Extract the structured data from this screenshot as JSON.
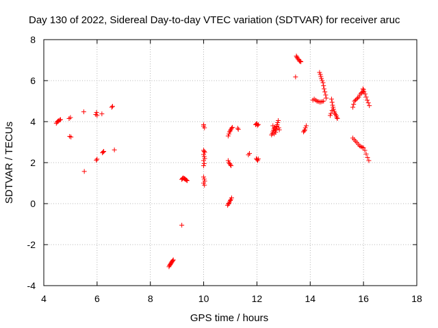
{
  "chart_data": {
    "type": "scatter",
    "title": "Day 130 of 2022, Sidereal Day-to-day VTEC variation (SDTVAR) for receiver aruc",
    "xlabel": "GPS time / hours",
    "ylabel": "SDTVAR / TECUs",
    "xlim": [
      4,
      18
    ],
    "ylim": [
      -4,
      8
    ],
    "xticks": [
      4,
      6,
      8,
      10,
      12,
      14,
      16,
      18
    ],
    "yticks": [
      -4,
      -2,
      0,
      2,
      4,
      6,
      8
    ],
    "grid": true,
    "marker": "+",
    "color": "#ff0000",
    "series": [
      {
        "name": "SDTVAR",
        "points": [
          [
            4.47,
            3.92
          ],
          [
            4.5,
            3.98
          ],
          [
            4.53,
            4.02
          ],
          [
            4.56,
            4.05
          ],
          [
            4.6,
            4.08
          ],
          [
            4.63,
            4.1
          ],
          [
            4.95,
            4.15
          ],
          [
            5.0,
            4.2
          ],
          [
            4.97,
            3.28
          ],
          [
            5.02,
            3.25
          ],
          [
            5.5,
            4.48
          ],
          [
            5.52,
            1.57
          ],
          [
            5.95,
            4.35
          ],
          [
            5.98,
            4.45
          ],
          [
            6.0,
            4.3
          ],
          [
            5.97,
            2.12
          ],
          [
            6.0,
            2.17
          ],
          [
            6.18,
            4.38
          ],
          [
            6.2,
            2.48
          ],
          [
            6.23,
            2.52
          ],
          [
            6.25,
            2.55
          ],
          [
            6.55,
            4.7
          ],
          [
            6.58,
            4.75
          ],
          [
            6.65,
            2.62
          ],
          [
            8.7,
            -3.08
          ],
          [
            8.72,
            -3.02
          ],
          [
            8.74,
            -2.98
          ],
          [
            8.76,
            -2.94
          ],
          [
            8.78,
            -2.9
          ],
          [
            8.8,
            -2.86
          ],
          [
            8.82,
            -2.82
          ],
          [
            8.84,
            -2.78
          ],
          [
            8.86,
            -2.74
          ],
          [
            9.18,
            -1.05
          ],
          [
            9.18,
            1.18
          ],
          [
            9.2,
            1.22
          ],
          [
            9.22,
            1.25
          ],
          [
            9.25,
            1.24
          ],
          [
            9.28,
            1.22
          ],
          [
            9.3,
            1.2
          ],
          [
            9.32,
            1.18
          ],
          [
            9.35,
            1.15
          ],
          [
            9.38,
            1.12
          ],
          [
            10.0,
            3.78
          ],
          [
            10.03,
            3.7
          ],
          [
            10.0,
            3.85
          ],
          [
            10.0,
            2.6
          ],
          [
            10.02,
            2.55
          ],
          [
            10.04,
            2.5
          ],
          [
            10.0,
            2.4
          ],
          [
            10.02,
            2.3
          ],
          [
            10.04,
            2.2
          ],
          [
            10.0,
            2.1
          ],
          [
            10.02,
            1.95
          ],
          [
            10.0,
            1.85
          ],
          [
            10.0,
            1.3
          ],
          [
            10.02,
            1.2
          ],
          [
            10.04,
            1.1
          ],
          [
            10.0,
            1.0
          ],
          [
            10.03,
            0.9
          ],
          [
            10.92,
            3.3
          ],
          [
            10.95,
            3.4
          ],
          [
            10.97,
            3.5
          ],
          [
            11.0,
            3.55
          ],
          [
            11.02,
            3.62
          ],
          [
            11.05,
            3.68
          ],
          [
            11.08,
            3.72
          ],
          [
            10.92,
            2.1
          ],
          [
            10.95,
            2.0
          ],
          [
            10.98,
            1.95
          ],
          [
            11.0,
            1.9
          ],
          [
            11.03,
            1.85
          ],
          [
            10.9,
            -0.08
          ],
          [
            10.93,
            -0.02
          ],
          [
            10.95,
            0.02
          ],
          [
            10.97,
            0.08
          ],
          [
            11.0,
            0.15
          ],
          [
            11.02,
            0.2
          ],
          [
            11.05,
            0.28
          ],
          [
            11.28,
            3.68
          ],
          [
            11.3,
            3.62
          ],
          [
            11.68,
            2.38
          ],
          [
            11.72,
            2.45
          ],
          [
            11.95,
            3.85
          ],
          [
            11.98,
            3.9
          ],
          [
            12.0,
            3.88
          ],
          [
            12.02,
            3.82
          ],
          [
            12.05,
            3.86
          ],
          [
            11.98,
            2.2
          ],
          [
            12.0,
            2.15
          ],
          [
            12.03,
            2.1
          ],
          [
            12.05,
            2.18
          ],
          [
            12.55,
            3.35
          ],
          [
            12.58,
            3.42
          ],
          [
            12.6,
            3.5
          ],
          [
            12.62,
            3.58
          ],
          [
            12.64,
            3.66
          ],
          [
            12.66,
            3.72
          ],
          [
            12.68,
            3.55
          ],
          [
            12.7,
            3.48
          ],
          [
            12.72,
            3.62
          ],
          [
            12.74,
            3.75
          ],
          [
            12.76,
            3.85
          ],
          [
            12.78,
            3.95
          ],
          [
            12.8,
            4.05
          ],
          [
            12.82,
            3.7
          ],
          [
            12.84,
            3.6
          ],
          [
            12.65,
            3.4
          ],
          [
            12.7,
            3.65
          ],
          [
            12.75,
            3.78
          ],
          [
            12.6,
            3.8
          ],
          [
            13.45,
            6.18
          ],
          [
            13.48,
            7.2
          ],
          [
            13.5,
            7.15
          ],
          [
            13.52,
            7.1
          ],
          [
            13.55,
            7.05
          ],
          [
            13.58,
            7.0
          ],
          [
            13.6,
            6.95
          ],
          [
            13.63,
            6.95
          ],
          [
            13.65,
            6.92
          ],
          [
            13.75,
            3.5
          ],
          [
            13.78,
            3.55
          ],
          [
            13.8,
            3.6
          ],
          [
            13.82,
            3.7
          ],
          [
            13.85,
            3.8
          ],
          [
            14.1,
            5.05
          ],
          [
            14.15,
            5.1
          ],
          [
            14.2,
            5.05
          ],
          [
            14.25,
            5.0
          ],
          [
            14.3,
            4.98
          ],
          [
            14.35,
            4.96
          ],
          [
            14.4,
            4.96
          ],
          [
            14.45,
            4.98
          ],
          [
            14.5,
            5.0
          ],
          [
            14.35,
            6.4
          ],
          [
            14.38,
            6.3
          ],
          [
            14.4,
            6.2
          ],
          [
            14.42,
            6.1
          ],
          [
            14.45,
            6.0
          ],
          [
            14.48,
            5.9
          ],
          [
            14.5,
            5.75
          ],
          [
            14.52,
            5.6
          ],
          [
            14.55,
            5.45
          ],
          [
            14.58,
            5.3
          ],
          [
            14.6,
            5.15
          ],
          [
            14.8,
            5.1
          ],
          [
            14.82,
            4.95
          ],
          [
            14.84,
            4.8
          ],
          [
            14.86,
            4.7
          ],
          [
            14.88,
            4.6
          ],
          [
            14.9,
            4.5
          ],
          [
            14.92,
            4.42
          ],
          [
            14.95,
            4.35
          ],
          [
            14.98,
            4.28
          ],
          [
            15.0,
            4.2
          ],
          [
            15.02,
            4.15
          ],
          [
            14.75,
            4.3
          ],
          [
            14.78,
            4.4
          ],
          [
            14.82,
            4.55
          ],
          [
            15.6,
            4.7
          ],
          [
            15.63,
            4.85
          ],
          [
            15.66,
            5.0
          ],
          [
            15.7,
            5.05
          ],
          [
            15.74,
            5.1
          ],
          [
            15.78,
            5.15
          ],
          [
            15.82,
            5.2
          ],
          [
            15.86,
            5.3
          ],
          [
            15.9,
            5.38
          ],
          [
            15.94,
            5.42
          ],
          [
            15.98,
            5.48
          ],
          [
            16.02,
            5.45
          ],
          [
            16.06,
            5.35
          ],
          [
            16.1,
            5.2
          ],
          [
            16.14,
            5.05
          ],
          [
            16.18,
            4.92
          ],
          [
            16.22,
            4.78
          ],
          [
            15.6,
            3.2
          ],
          [
            15.65,
            3.12
          ],
          [
            15.7,
            3.05
          ],
          [
            15.75,
            2.98
          ],
          [
            15.8,
            2.9
          ],
          [
            15.85,
            2.82
          ],
          [
            15.9,
            2.78
          ],
          [
            15.95,
            2.75
          ],
          [
            16.0,
            2.72
          ],
          [
            16.05,
            2.6
          ],
          [
            16.1,
            2.42
          ],
          [
            16.15,
            2.25
          ],
          [
            16.2,
            2.1
          ],
          [
            15.98,
            5.6
          ],
          [
            16.0,
            5.55
          ]
        ]
      }
    ]
  }
}
